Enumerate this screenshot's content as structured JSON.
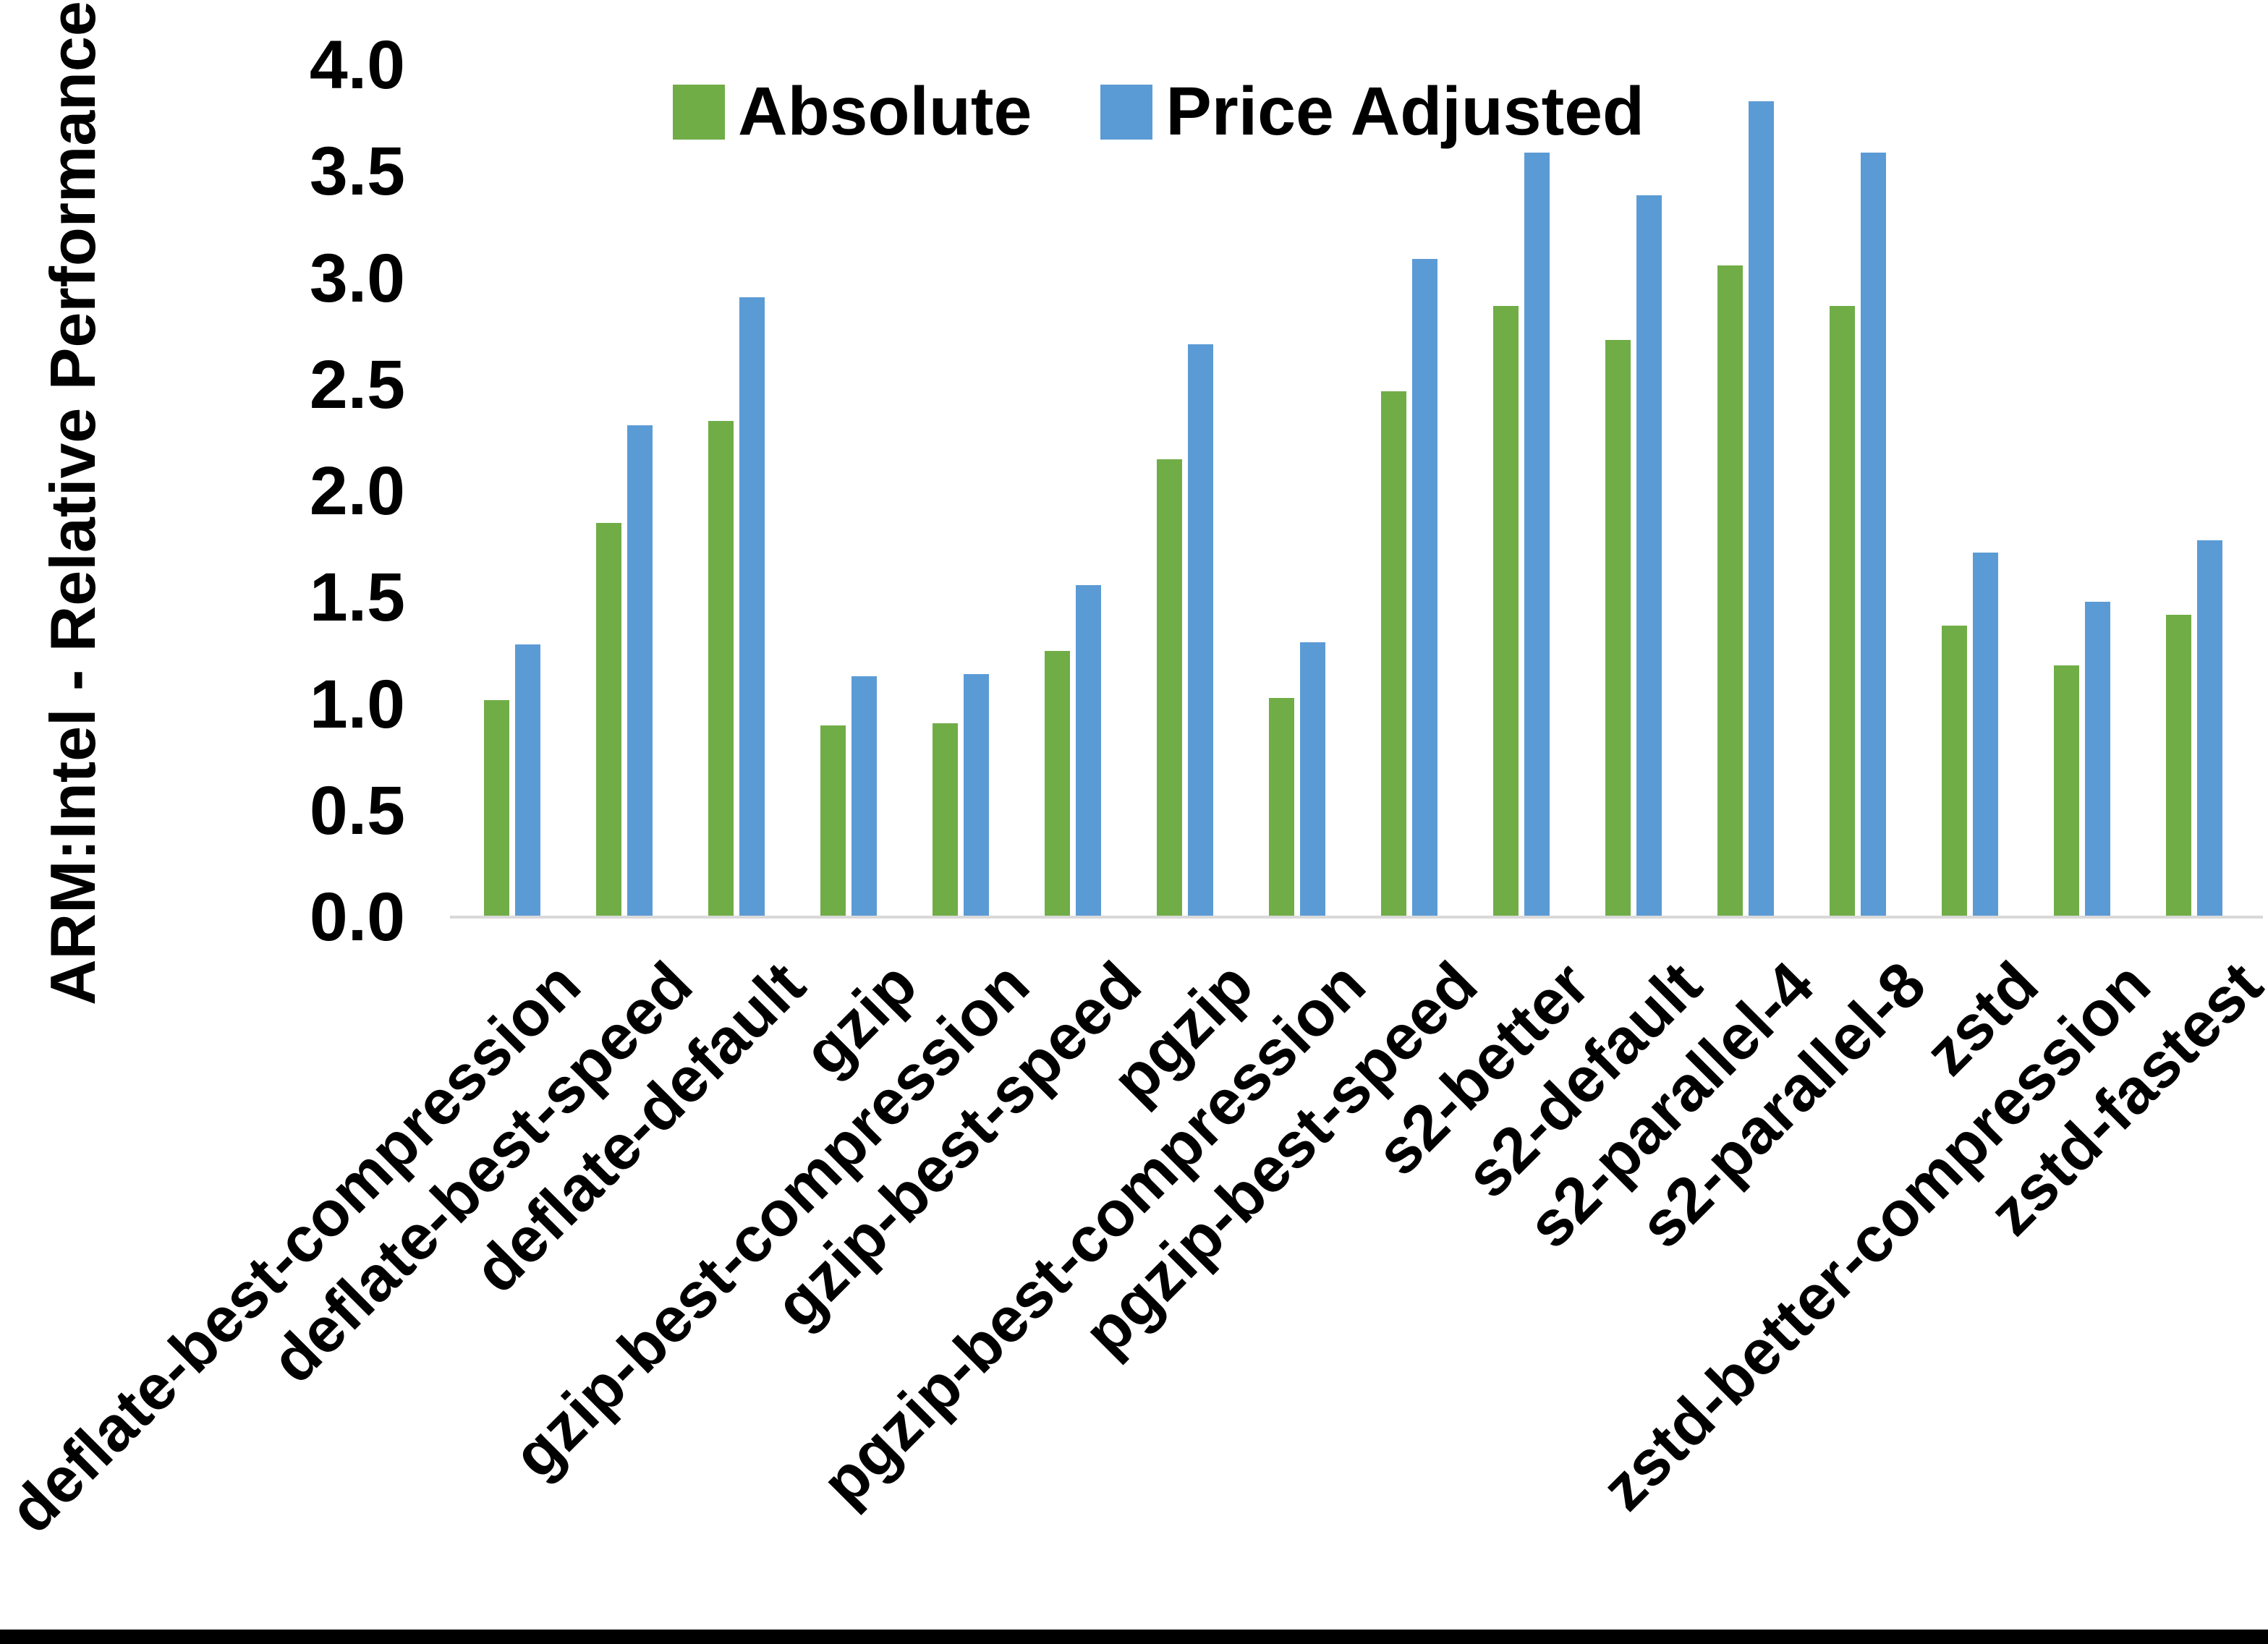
{
  "chart_data": {
    "type": "bar",
    "title": "",
    "xlabel": "",
    "ylabel": "ARM:Intel - Relative Performance",
    "ylim": [
      0.0,
      4.0
    ],
    "ytick_step": 0.5,
    "ytick_labels": [
      "0.0",
      "0.5",
      "1.0",
      "1.5",
      "2.0",
      "2.5",
      "3.0",
      "3.5",
      "4.0"
    ],
    "grid": false,
    "legend_position": "top-center",
    "categories": [
      "deflate-best-compression",
      "deflate-best-speed",
      "deflate-default",
      "gzip",
      "gzip-best-compression",
      "gzip-best-speed",
      "pgzip",
      "pgzip-best-compression",
      "pgzip-best-speed",
      "s2-better",
      "s2-default",
      "s2-parallel-4",
      "s2-parallel-8",
      "zstd",
      "zstd-better-compression",
      "zstd-fastest"
    ],
    "series": [
      {
        "name": "Absolute",
        "color": "#70AD47",
        "values": [
          1.02,
          1.85,
          2.33,
          0.9,
          0.91,
          1.25,
          2.15,
          1.03,
          2.47,
          2.87,
          2.71,
          3.06,
          2.87,
          1.37,
          1.18,
          1.42
        ]
      },
      {
        "name": "Price Adjusted",
        "color": "#5B9BD5",
        "values": [
          1.28,
          2.31,
          2.91,
          1.13,
          1.14,
          1.56,
          2.69,
          1.29,
          3.09,
          3.59,
          3.39,
          3.83,
          3.59,
          1.71,
          1.48,
          1.77
        ]
      }
    ]
  },
  "colors": {
    "background": "#FFFFFF",
    "axis_line": "#D9D9D9",
    "text": "#000000",
    "bottom_bar": "#000000"
  }
}
